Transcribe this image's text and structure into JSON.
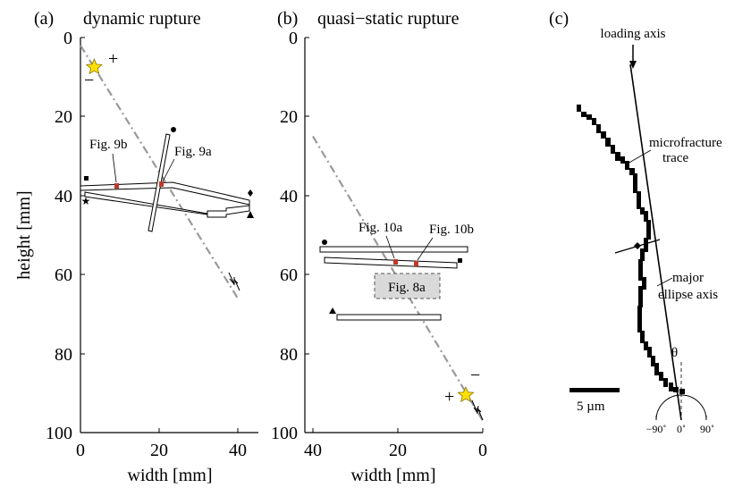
{
  "panels": [
    {
      "id": "a",
      "tag": "(a)",
      "title": "dynamic rupture",
      "xlabel": "width [mm]",
      "ylabel": "height [mm]",
      "x_ticks": [
        "0",
        "20",
        "40"
      ],
      "y_ticks": [
        "0",
        "20",
        "40",
        "60",
        "80",
        "100"
      ],
      "annotations": [
        "Fig. 9b",
        "Fig. 9a"
      ],
      "signs": [
        "+",
        "−"
      ]
    },
    {
      "id": "b",
      "tag": "(b)",
      "title": "quasi−static rupture",
      "xlabel": "width [mm]",
      "x_ticks": [
        "40",
        "20",
        "0"
      ],
      "y_ticks": [
        "0",
        "20",
        "40",
        "60",
        "80",
        "100"
      ],
      "annotations": [
        "Fig. 10a",
        "Fig. 10b",
        "Fig. 8a"
      ],
      "signs": [
        "+",
        "−"
      ]
    },
    {
      "id": "c",
      "tag": "(c)",
      "labels": {
        "loading_axis": "loading axis",
        "microfracture_1": "microfracture",
        "microfracture_2": "trace",
        "ellipse_1": "major",
        "ellipse_2": "ellipse axis",
        "theta": "θ",
        "scale": "5 µm",
        "deg_neg": "−90˚",
        "deg_zero": "0˚",
        "deg_pos": "90˚"
      }
    }
  ],
  "chart_data": [
    {
      "type": "scatter",
      "panel": "(a)",
      "title": "dynamic rupture",
      "xlabel": "width [mm]",
      "ylabel": "height [mm]",
      "xlim": [
        0,
        45
      ],
      "ylim": [
        100,
        0
      ],
      "series": [
        {
          "values": [
            {
              "x": 0,
              "y": 2
            },
            {
              "x": 40,
              "y": 66
            }
          ]
        },
        {
          "values": [
            {
              "x": 3.5,
              "y": 7.5
            }
          ]
        }
      ]
    },
    {
      "type": "scatter",
      "panel": "(b)",
      "title": "quasi−static rupture",
      "xlabel": "width [mm]",
      "xlim": [
        42,
        0
      ],
      "ylim": [
        100,
        0
      ],
      "series": [
        {
          "values": [
            {
              "x": 40,
              "y": 25
            },
            {
              "x": 0,
              "y": 97
            }
          ]
        },
        {
          "values": [
            {
              "x": 4,
              "y": 90.5
            }
          ]
        }
      ]
    }
  ]
}
